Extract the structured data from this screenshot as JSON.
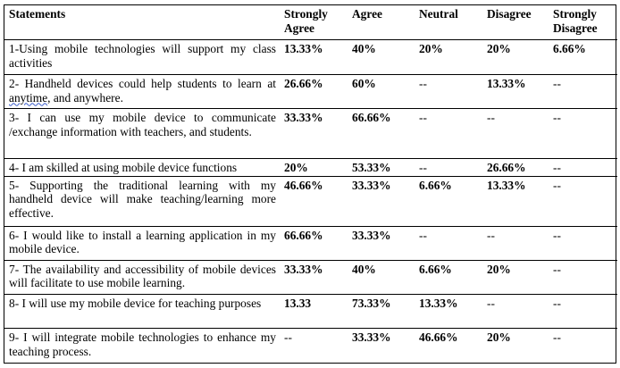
{
  "headers": [
    "Statements",
    "Strongly Agree",
    "Agree",
    "Neutral",
    "Disagree",
    "Strongly Disagree"
  ],
  "rows": [
    {
      "statement": "1-Using mobile technologies will support my class activities",
      "strongly_agree": "13.33%",
      "agree": "40%",
      "neutral": "20%",
      "disagree": "20%",
      "strongly_disagree": "6.66%"
    },
    {
      "statement_before": "2- Handheld devices could help students to learn at ",
      "statement_marked": "anytime",
      "statement_after": ", and anywhere.",
      "strongly_agree": "26.66%",
      "agree": "60%",
      "neutral": "--",
      "disagree": "13.33%",
      "strongly_disagree": "--"
    },
    {
      "statement": "3- I can use my mobile device to communicate /exchange information with teachers, and students.",
      "strongly_agree": "33.33%",
      "agree": "66.66%",
      "neutral": "--",
      "disagree": "--",
      "strongly_disagree": "--"
    },
    {
      "statement": "4- I am skilled at using mobile device functions",
      "strongly_agree": "20%",
      "agree": "53.33%",
      "neutral": "--",
      "disagree": "26.66%",
      "strongly_disagree": "--"
    },
    {
      "statement": "5- Supporting the traditional learning with my handheld device will make teaching/learning more effective.",
      "strongly_agree": "46.66%",
      "agree": "33.33%",
      "neutral": "6.66%",
      "disagree": "13.33%",
      "strongly_disagree": "--"
    },
    {
      "statement": "6- I would like to install a learning application in my mobile device.",
      "strongly_agree": "66.66%",
      "agree": "33.33%",
      "neutral": "--",
      "disagree": "--",
      "strongly_disagree": "--"
    },
    {
      "statement": "7- The availability and accessibility of mobile devices will facilitate to use mobile learning.",
      "strongly_agree": "33.33%",
      "agree": "40%",
      "neutral": "6.66%",
      "disagree": "20%",
      "strongly_disagree": "--"
    },
    {
      "statement": "8- I will use my mobile device for teaching purposes",
      "strongly_agree": "13.33",
      "agree": "73.33%",
      "neutral": "13.33%",
      "disagree": "--",
      "strongly_disagree": "--"
    },
    {
      "statement": "9- I will integrate mobile technologies to enhance my teaching process.",
      "strongly_agree": "--",
      "agree": "33.33%",
      "neutral": "46.66%",
      "disagree": "20%",
      "strongly_disagree": "--"
    }
  ]
}
